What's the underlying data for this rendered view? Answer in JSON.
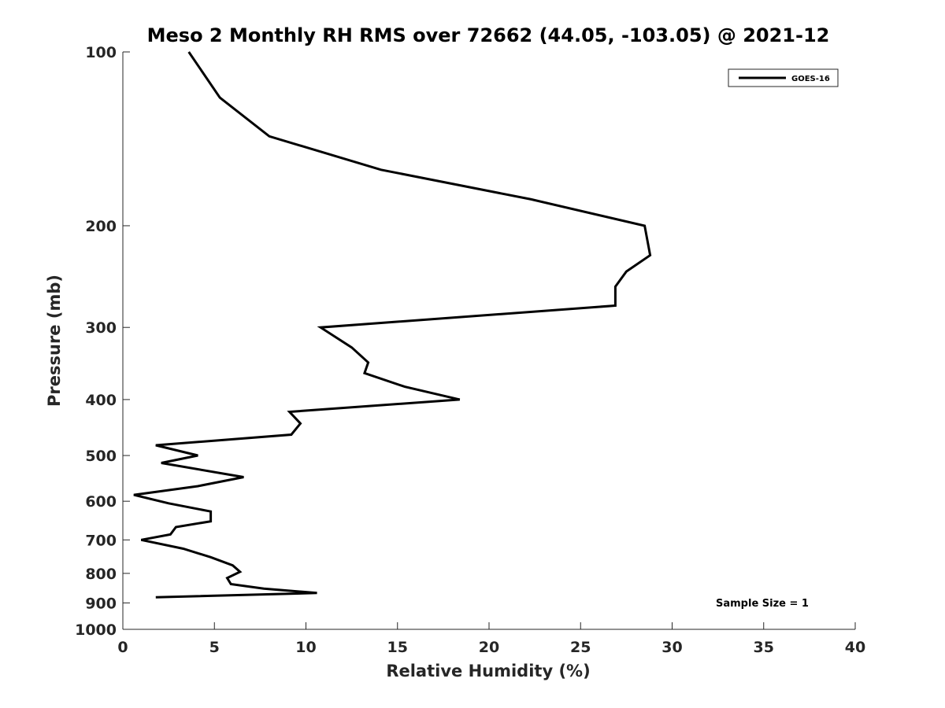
{
  "chart_data": {
    "type": "line",
    "title": "Meso 2 Monthly RH RMS over 72662 (44.05, -103.05) @ 2021-12",
    "xlabel": "Relative Humidity (%)",
    "ylabel": "Pressure (mb)",
    "xlim": [
      0,
      40
    ],
    "ylim": [
      100,
      1000
    ],
    "y_scale": "log",
    "y_reversed": true,
    "x_ticks": [
      0,
      5,
      10,
      15,
      20,
      25,
      30,
      35,
      40
    ],
    "y_ticks": [
      100,
      200,
      300,
      400,
      500,
      600,
      700,
      800,
      900,
      1000
    ],
    "grid": false,
    "legend_position": "top-right",
    "annotation": "Sample Size = 1",
    "series": [
      {
        "name": "GOES-16",
        "color": "#000000",
        "points": [
          {
            "rh": 3.6,
            "p": 100
          },
          {
            "rh": 5.3,
            "p": 120
          },
          {
            "rh": 8.0,
            "p": 140
          },
          {
            "rh": 14.1,
            "p": 160
          },
          {
            "rh": 22.3,
            "p": 180
          },
          {
            "rh": 28.5,
            "p": 200
          },
          {
            "rh": 28.8,
            "p": 225
          },
          {
            "rh": 27.5,
            "p": 240
          },
          {
            "rh": 26.9,
            "p": 255
          },
          {
            "rh": 26.9,
            "p": 275
          },
          {
            "rh": 10.8,
            "p": 300
          },
          {
            "rh": 12.5,
            "p": 325
          },
          {
            "rh": 13.4,
            "p": 345
          },
          {
            "rh": 13.2,
            "p": 360
          },
          {
            "rh": 15.4,
            "p": 380
          },
          {
            "rh": 18.4,
            "p": 400
          },
          {
            "rh": 9.1,
            "p": 420
          },
          {
            "rh": 9.7,
            "p": 440
          },
          {
            "rh": 9.2,
            "p": 460
          },
          {
            "rh": 1.8,
            "p": 480
          },
          {
            "rh": 4.1,
            "p": 500
          },
          {
            "rh": 2.1,
            "p": 515
          },
          {
            "rh": 6.6,
            "p": 545
          },
          {
            "rh": 4.1,
            "p": 565
          },
          {
            "rh": 0.6,
            "p": 585
          },
          {
            "rh": 2.5,
            "p": 605
          },
          {
            "rh": 4.8,
            "p": 625
          },
          {
            "rh": 4.8,
            "p": 650
          },
          {
            "rh": 2.9,
            "p": 665
          },
          {
            "rh": 2.6,
            "p": 685
          },
          {
            "rh": 1.0,
            "p": 700
          },
          {
            "rh": 3.3,
            "p": 725
          },
          {
            "rh": 4.8,
            "p": 750
          },
          {
            "rh": 6.0,
            "p": 775
          },
          {
            "rh": 6.4,
            "p": 795
          },
          {
            "rh": 5.7,
            "p": 815
          },
          {
            "rh": 5.9,
            "p": 835
          },
          {
            "rh": 7.7,
            "p": 850
          },
          {
            "rh": 10.6,
            "p": 865
          },
          {
            "rh": 1.8,
            "p": 880
          }
        ]
      }
    ]
  }
}
